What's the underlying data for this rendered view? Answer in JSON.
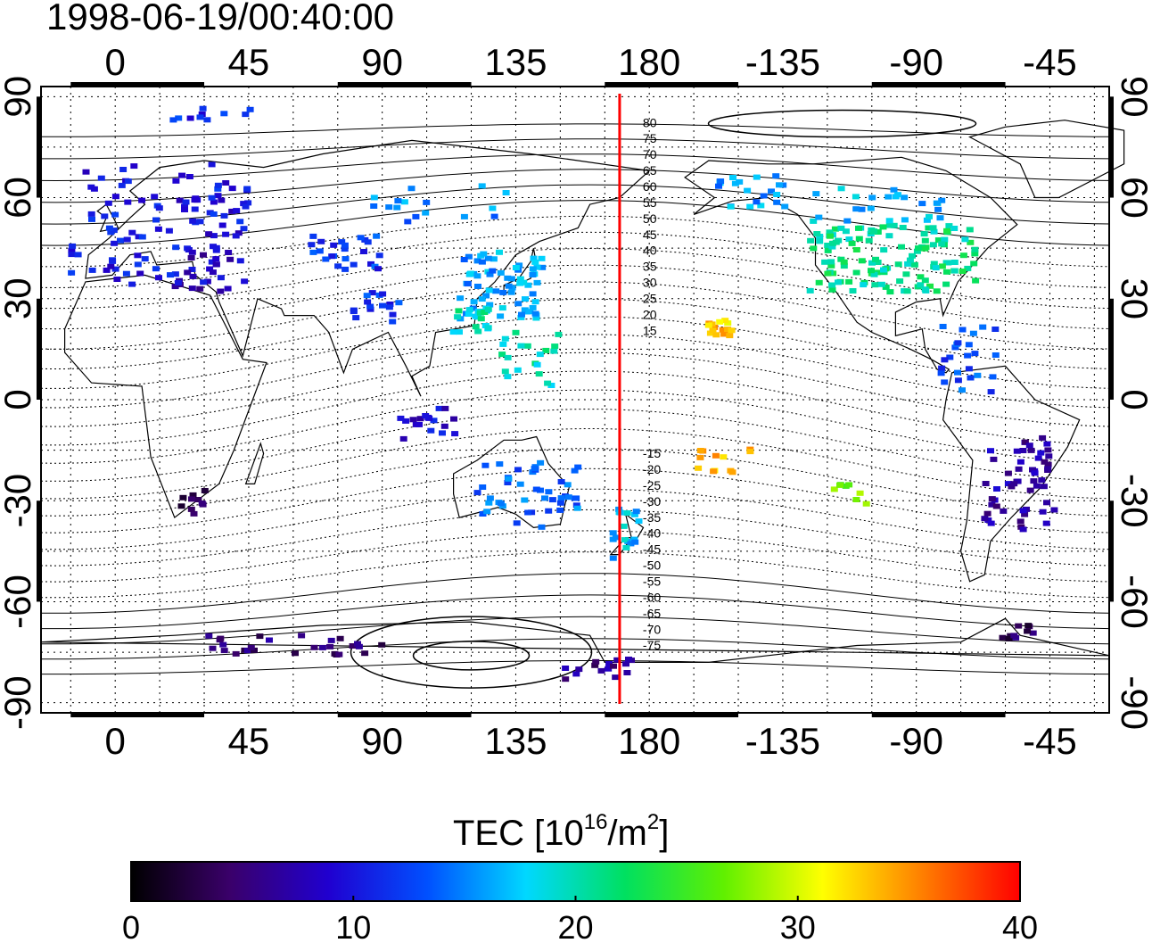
{
  "header": {
    "timestamp": "1998-06-19/00:40:00"
  },
  "map": {
    "lon_ticks": [
      "0",
      "45",
      "90",
      "135",
      "180",
      "-135",
      "-90",
      "-45"
    ],
    "lat_ticks_left": [
      "90",
      "60",
      "30",
      "0",
      "-30",
      "-60",
      "-90"
    ],
    "lat_ticks_right": [
      "90",
      "60",
      "30",
      "0",
      "-30",
      "-60",
      "-90"
    ],
    "lon_range": [
      -25,
      335
    ],
    "lat_range": [
      -93,
      93
    ],
    "grid": true,
    "meridian_marker": {
      "lon": 170,
      "color": "#ff0000"
    },
    "contour_labels": [
      "80",
      "75",
      "70",
      "65",
      "60",
      "55",
      "50",
      "45",
      "40",
      "35",
      "30",
      "25",
      "20",
      "15",
      "-15",
      "-20",
      "-25",
      "-30",
      "-35",
      "-40",
      "-45",
      "-50",
      "-55",
      "-60",
      "-65",
      "-70",
      "-75"
    ]
  },
  "tec_clusters": [
    {
      "region": "Europe",
      "lon": 15,
      "lat": 52,
      "dlon": 30,
      "dlat": 18,
      "tec": 10,
      "n": 110
    },
    {
      "region": "Greenland strip",
      "lon": 32,
      "lat": 85,
      "dlon": 14,
      "dlat": 2,
      "tec": 11,
      "n": 10
    },
    {
      "region": "Mediterranean",
      "lon": 30,
      "lat": 38,
      "dlon": 10,
      "dlat": 6,
      "tec": 8,
      "n": 18
    },
    {
      "region": "Central Asia",
      "lon": 78,
      "lat": 43,
      "dlon": 12,
      "dlat": 6,
      "tec": 12,
      "n": 25
    },
    {
      "region": "South Asia",
      "lon": 88,
      "lat": 28,
      "dlon": 8,
      "dlat": 5,
      "tec": 12,
      "n": 16
    },
    {
      "region": "China Japan",
      "lon": 130,
      "lat": 34,
      "dlon": 14,
      "dlat": 10,
      "tec": 16,
      "n": 70
    },
    {
      "region": "South China",
      "lon": 122,
      "lat": 24,
      "dlon": 8,
      "dlat": 4,
      "tec": 20,
      "n": 18
    },
    {
      "region": "Siberia",
      "lon": 110,
      "lat": 58,
      "dlon": 25,
      "dlat": 6,
      "tec": 15,
      "n": 16
    },
    {
      "region": "Philippines",
      "lon": 140,
      "lat": 12,
      "dlon": 10,
      "dlat": 8,
      "tec": 20,
      "n": 20
    },
    {
      "region": "Indonesia",
      "lon": 105,
      "lat": -7,
      "dlon": 10,
      "dlat": 5,
      "tec": 9,
      "n": 18
    },
    {
      "region": "Australia",
      "lon": 140,
      "lat": -28,
      "dlon": 18,
      "dlat": 10,
      "tec": 14,
      "n": 45
    },
    {
      "region": "New Zealand",
      "lon": 172,
      "lat": -40,
      "dlon": 5,
      "dlat": 8,
      "tec": 17,
      "n": 18
    },
    {
      "region": "Hawaii",
      "lon": 204,
      "lat": 22,
      "dlon": 4,
      "dlat": 3,
      "tec": 33,
      "n": 16
    },
    {
      "region": "Alaska",
      "lon": 215,
      "lat": 62,
      "dlon": 12,
      "dlat": 5,
      "tec": 16,
      "n": 22
    },
    {
      "region": "North America",
      "lon": 262,
      "lat": 42,
      "dlon": 28,
      "dlat": 10,
      "tec": 21,
      "n": 130
    },
    {
      "region": "Canada",
      "lon": 255,
      "lat": 58,
      "dlon": 25,
      "dlat": 5,
      "tec": 17,
      "n": 25
    },
    {
      "region": "Caribbean",
      "lon": 288,
      "lat": 12,
      "dlon": 10,
      "dlat": 10,
      "tec": 13,
      "n": 25
    },
    {
      "region": "South America",
      "lon": 305,
      "lat": -25,
      "dlon": 12,
      "dlat": 14,
      "tec": 7,
      "n": 55
    },
    {
      "region": "Southern Africa",
      "lon": 25,
      "lat": -30,
      "dlon": 8,
      "dlat": 4,
      "tec": 4,
      "n": 10
    },
    {
      "region": "Antarctica Indian",
      "lon": 60,
      "lat": -73,
      "dlon": 30,
      "dlat": 3,
      "tec": 5,
      "n": 28
    },
    {
      "region": "Antarctica Pacific",
      "lon": 165,
      "lat": -80,
      "dlon": 15,
      "dlat": 3,
      "tec": 6,
      "n": 16
    },
    {
      "region": "Southern Argentina",
      "lon": 305,
      "lat": -69,
      "dlon": 6,
      "dlat": 2,
      "tec": 4,
      "n": 10
    },
    {
      "region": "South Pacific islands",
      "lon": 205,
      "lat": -18,
      "dlon": 10,
      "dlat": 4,
      "tec": 33,
      "n": 12
    },
    {
      "region": "Central Pacific",
      "lon": 248,
      "lat": -28,
      "dlon": 6,
      "dlat": 3,
      "tec": 27,
      "n": 8
    }
  ],
  "colorbar": {
    "title": "TEC  [10",
    "title_sup": "16",
    "title_mid": "/m",
    "title_sup2": "2",
    "title_end": "]",
    "ticks": [
      "0",
      "10",
      "20",
      "30",
      "40"
    ],
    "range": [
      0,
      40
    ],
    "stops": [
      "#000000",
      "#3a006a",
      "#2000d0",
      "#0050ff",
      "#00d8ff",
      "#00e060",
      "#60f000",
      "#ffff00",
      "#ff8000",
      "#ff0000"
    ]
  }
}
